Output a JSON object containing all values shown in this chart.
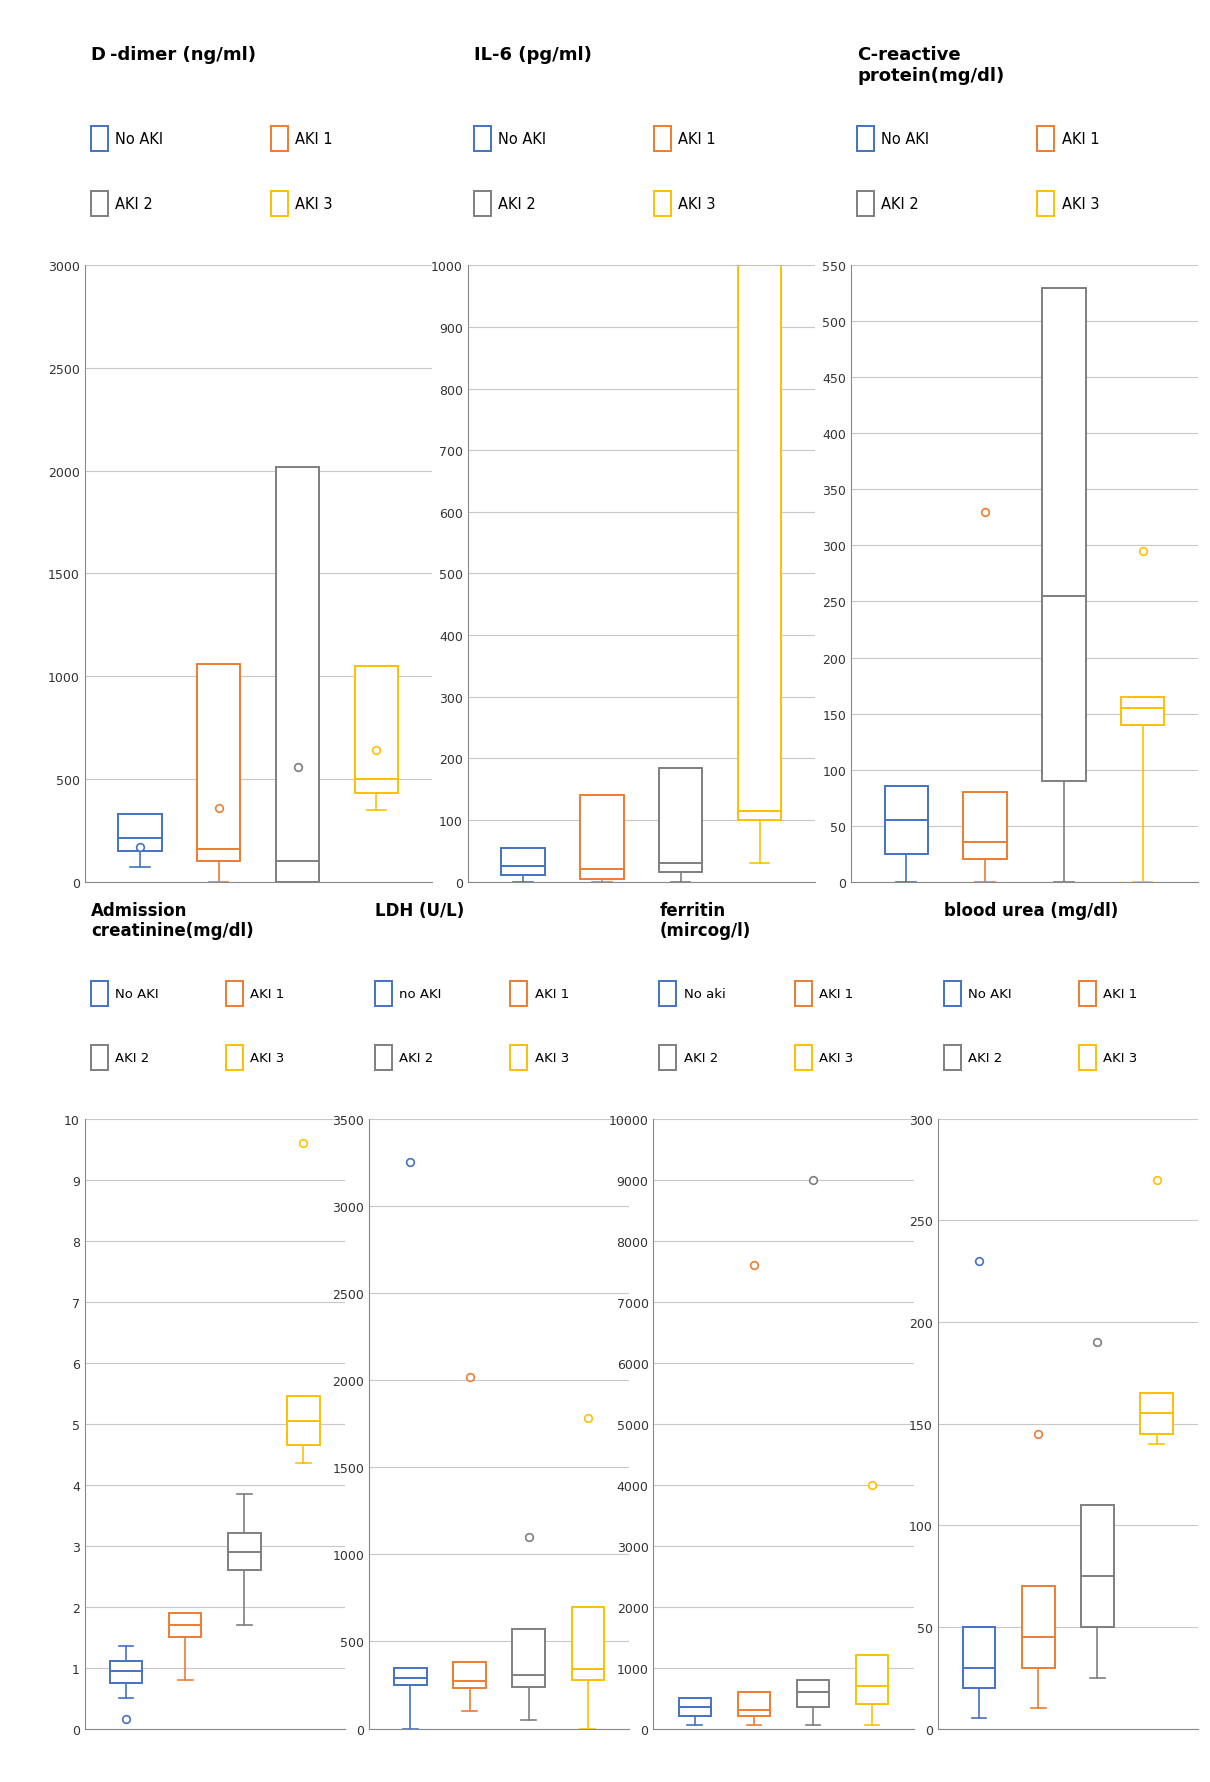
{
  "colors": {
    "no_aki": "#4472C4",
    "aki1": "#ED7D31",
    "aki2": "#7F7F7F",
    "aki3": "#FFC000"
  },
  "plots": {
    "ddimer": {
      "title_bold": "D",
      "title_rest": "-dimer (ng/ml)",
      "ylim": [
        0,
        3000
      ],
      "yticks": [
        0,
        500,
        1000,
        1500,
        2000,
        2500,
        3000
      ],
      "boxes": [
        {
          "color": "#4472C4",
          "q1": 150,
          "median": 210,
          "q3": 330,
          "whisker_low": 70,
          "whisker_high": null,
          "outliers": [
            170
          ]
        },
        {
          "color": "#ED7D31",
          "q1": 100,
          "median": 160,
          "q3": 1060,
          "whisker_low": 0,
          "whisker_high": null,
          "outliers": [
            360
          ]
        },
        {
          "color": "#7F7F7F",
          "q1": 0,
          "median": 100,
          "q3": 2020,
          "whisker_low": null,
          "whisker_high": null,
          "outliers": [
            560
          ]
        },
        {
          "color": "#FFC000",
          "q1": 430,
          "median": 500,
          "q3": 1050,
          "whisker_low": 350,
          "whisker_high": null,
          "outliers": [
            640
          ]
        }
      ]
    },
    "il6": {
      "title_bold": "",
      "title_rest": "IL-6 (pg/ml)",
      "ylim": [
        0,
        1000
      ],
      "yticks": [
        0,
        100,
        200,
        300,
        400,
        500,
        600,
        700,
        800,
        900,
        1000
      ],
      "boxes": [
        {
          "color": "#4472C4",
          "q1": 10,
          "median": 25,
          "q3": 55,
          "whisker_low": 0,
          "whisker_high": null,
          "outliers": []
        },
        {
          "color": "#ED7D31",
          "q1": 5,
          "median": 20,
          "q3": 140,
          "whisker_low": 0,
          "whisker_high": null,
          "outliers": []
        },
        {
          "color": "#7F7F7F",
          "q1": 15,
          "median": 30,
          "q3": 185,
          "whisker_low": 0,
          "whisker_high": null,
          "outliers": []
        },
        {
          "color": "#FFC000",
          "q1": 100,
          "median": 115,
          "q3": 1000,
          "whisker_low": 30,
          "whisker_high": null,
          "outliers": []
        }
      ]
    },
    "crp": {
      "title_bold": "",
      "title_rest": "C-reactive\nprotein(mg/dl)",
      "ylim": [
        0,
        550
      ],
      "yticks": [
        0,
        50,
        100,
        150,
        200,
        250,
        300,
        350,
        400,
        450,
        500,
        550
      ],
      "boxes": [
        {
          "color": "#4472C4",
          "q1": 25,
          "median": 55,
          "q3": 85,
          "whisker_low": 0,
          "whisker_high": null,
          "outliers": []
        },
        {
          "color": "#ED7D31",
          "q1": 20,
          "median": 35,
          "q3": 80,
          "whisker_low": 0,
          "whisker_high": null,
          "outliers": [
            330
          ]
        },
        {
          "color": "#7F7F7F",
          "q1": 90,
          "median": 255,
          "q3": 530,
          "whisker_low": 0,
          "whisker_high": null,
          "outliers": []
        },
        {
          "color": "#FFC000",
          "q1": 140,
          "median": 155,
          "q3": 165,
          "whisker_low": 0,
          "whisker_high": null,
          "outliers": [
            295
          ]
        }
      ]
    },
    "creatinine": {
      "title_bold": "",
      "title_rest": "Admission\ncreatinine(mg/dl)",
      "ylim": [
        0,
        10
      ],
      "yticks": [
        0,
        1,
        2,
        3,
        4,
        5,
        6,
        7,
        8,
        9,
        10
      ],
      "boxes": [
        {
          "color": "#4472C4",
          "q1": 0.75,
          "median": 0.95,
          "q3": 1.1,
          "whisker_low": 0.5,
          "whisker_high": 1.35,
          "outliers": [
            0.15
          ]
        },
        {
          "color": "#ED7D31",
          "q1": 1.5,
          "median": 1.7,
          "q3": 1.9,
          "whisker_low": 0.8,
          "whisker_high": null,
          "outliers": []
        },
        {
          "color": "#7F7F7F",
          "q1": 2.6,
          "median": 2.9,
          "q3": 3.2,
          "whisker_low": 1.7,
          "whisker_high": 3.85,
          "outliers": []
        },
        {
          "color": "#FFC000",
          "q1": 4.65,
          "median": 5.05,
          "q3": 5.45,
          "whisker_low": 4.35,
          "whisker_high": null,
          "outliers": [
            9.6
          ]
        }
      ]
    },
    "ldh": {
      "title_bold": "",
      "title_rest": "LDH (U/L)",
      "ylim": [
        0,
        3500
      ],
      "yticks": [
        0,
        500,
        1000,
        1500,
        2000,
        2500,
        3000,
        3500
      ],
      "boxes": [
        {
          "color": "#4472C4",
          "q1": 250,
          "median": 290,
          "q3": 350,
          "whisker_low": 0,
          "whisker_high": null,
          "outliers": [
            3250
          ]
        },
        {
          "color": "#ED7D31",
          "q1": 230,
          "median": 275,
          "q3": 380,
          "whisker_low": 100,
          "whisker_high": null,
          "outliers": [
            2020
          ]
        },
        {
          "color": "#7F7F7F",
          "q1": 240,
          "median": 310,
          "q3": 570,
          "whisker_low": 50,
          "whisker_high": null,
          "outliers": [
            1100
          ]
        },
        {
          "color": "#FFC000",
          "q1": 280,
          "median": 340,
          "q3": 700,
          "whisker_low": 0,
          "whisker_high": null,
          "outliers": [
            1780
          ]
        }
      ]
    },
    "ferritin": {
      "title_bold": "",
      "title_rest": "ferritin\n(mircog/l)",
      "ylim": [
        0,
        10000
      ],
      "yticks": [
        0,
        1000,
        2000,
        3000,
        4000,
        5000,
        6000,
        7000,
        8000,
        9000,
        10000
      ],
      "boxes": [
        {
          "color": "#4472C4",
          "q1": 200,
          "median": 350,
          "q3": 500,
          "whisker_low": 50,
          "whisker_high": null,
          "outliers": []
        },
        {
          "color": "#ED7D31",
          "q1": 200,
          "median": 300,
          "q3": 600,
          "whisker_low": 50,
          "whisker_high": null,
          "outliers": [
            7600
          ]
        },
        {
          "color": "#7F7F7F",
          "q1": 350,
          "median": 600,
          "q3": 800,
          "whisker_low": 50,
          "whisker_high": null,
          "outliers": [
            9000
          ]
        },
        {
          "color": "#FFC000",
          "q1": 400,
          "median": 700,
          "q3": 1200,
          "whisker_low": 50,
          "whisker_high": null,
          "outliers": [
            4000
          ]
        }
      ]
    },
    "blood_urea": {
      "title_bold": "",
      "title_rest": "blood urea (mg/dl)",
      "ylim": [
        0,
        300
      ],
      "yticks": [
        0,
        50,
        100,
        150,
        200,
        250,
        300
      ],
      "boxes": [
        {
          "color": "#4472C4",
          "q1": 20,
          "median": 30,
          "q3": 50,
          "whisker_low": 5,
          "whisker_high": null,
          "outliers": [
            230
          ]
        },
        {
          "color": "#ED7D31",
          "q1": 30,
          "median": 45,
          "q3": 70,
          "whisker_low": 10,
          "whisker_high": null,
          "outliers": [
            145
          ]
        },
        {
          "color": "#7F7F7F",
          "q1": 50,
          "median": 75,
          "q3": 110,
          "whisker_low": 25,
          "whisker_high": null,
          "outliers": [
            190
          ]
        },
        {
          "color": "#FFC000",
          "q1": 145,
          "median": 155,
          "q3": 165,
          "whisker_low": 140,
          "whisker_high": null,
          "outliers": [
            270
          ]
        }
      ]
    }
  },
  "legend_labels_default": [
    "No AKI",
    "AKI 1",
    "AKI 2",
    "AKI 3"
  ],
  "legend_labels_ldh": [
    "no AKI",
    "AKI 1",
    "AKI 2",
    "AKI 3"
  ],
  "legend_labels_ferritin": [
    "No aki",
    "AKI 1",
    "AKI 2",
    "AKI 3"
  ],
  "background_color": "#FFFFFF",
  "grid_color": "#C8C8C8"
}
